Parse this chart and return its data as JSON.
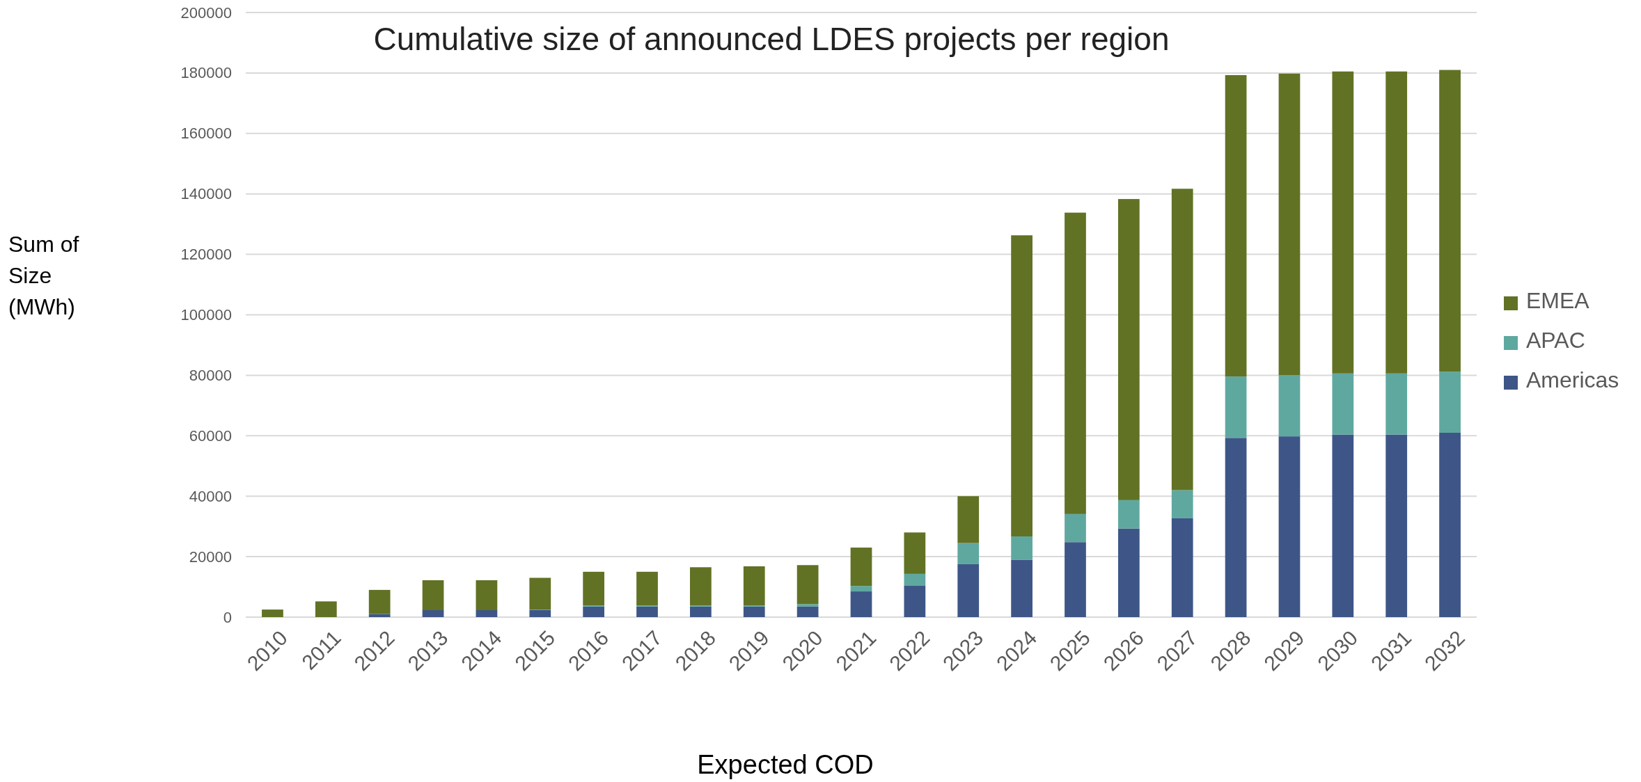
{
  "chart_data": {
    "type": "bar",
    "title": "Cumulative size of announced LDES projects per region",
    "xlabel": "Expected COD",
    "ylabel": "Sum of Size (MWh)",
    "stacked": true,
    "categories": [
      "2010",
      "2011",
      "2012",
      "2013",
      "2014",
      "2015",
      "2016",
      "2017",
      "2018",
      "2019",
      "2020",
      "2021",
      "2022",
      "2023",
      "2024",
      "2025",
      "2026",
      "2027",
      "2028",
      "2029",
      "2030",
      "2031",
      "2032"
    ],
    "series": [
      {
        "name": "Americas",
        "color": "#3e5687",
        "values": [
          0,
          0,
          1000,
          2300,
          2300,
          2300,
          3500,
          3500,
          3500,
          3500,
          3500,
          8500,
          10500,
          17500,
          19000,
          24800,
          29300,
          32700,
          59300,
          59800,
          60400,
          60400,
          61000
        ]
      },
      {
        "name": "APAC",
        "color": "#5fa8a0",
        "values": [
          0,
          0,
          0,
          0,
          0,
          200,
          400,
          400,
          400,
          400,
          800,
          1800,
          3800,
          7000,
          7700,
          9300,
          9400,
          9300,
          20300,
          20200,
          20200,
          20200,
          20200
        ]
      },
      {
        "name": "EMEA",
        "color": "#617224",
        "values": [
          2500,
          5200,
          8000,
          9900,
          9900,
          10500,
          11100,
          11100,
          12600,
          12900,
          12900,
          12700,
          13700,
          15500,
          99600,
          99700,
          99600,
          99700,
          99700,
          99800,
          99900,
          99900,
          99800
        ]
      }
    ],
    "ylim": [
      0,
      200000
    ],
    "yticks": [
      0,
      20000,
      40000,
      60000,
      80000,
      100000,
      120000,
      140000,
      160000,
      180000,
      200000
    ],
    "grid": "y",
    "legend": "right"
  }
}
